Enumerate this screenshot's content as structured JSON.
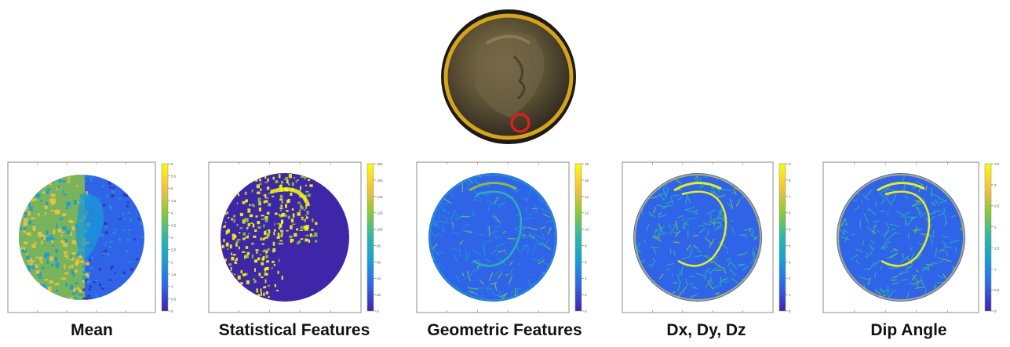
{
  "coin": {
    "title": ""
  },
  "panels": [
    {
      "label": "Mean",
      "colorbar_ticks": [
        "0",
        "0.5",
        "1",
        "1.5",
        "2",
        "2.5",
        "3",
        "3.5",
        "4",
        "4.5",
        "5",
        "5.5",
        "6"
      ],
      "pattern": "mean"
    },
    {
      "label": "Statistical Features",
      "colorbar_ticks": [
        "0",
        "20",
        "40",
        "60",
        "80",
        "100",
        "120",
        "140",
        "160",
        "180"
      ],
      "pattern": "stat"
    },
    {
      "label": "Geometric Features",
      "colorbar_ticks": [
        "0",
        "2",
        "4",
        "6",
        "8",
        "10",
        "12",
        "14",
        "16",
        "18"
      ],
      "pattern": "geom"
    },
    {
      "label": "Dx, Dy, Dz",
      "colorbar_ticks": [
        "0",
        "1",
        "2",
        "3",
        "4",
        "5",
        "6",
        "7",
        "8",
        "9"
      ],
      "pattern": "deriv"
    },
    {
      "label": "Dip Angle",
      "colorbar_ticks": [
        "0",
        "0.5",
        "1",
        "1.5",
        "2",
        "2.5",
        "3",
        "3.5"
      ],
      "pattern": "dip"
    }
  ],
  "colors": {
    "ring": "#d4a51c",
    "marker": "#e11d1d",
    "cmap": [
      "#3e26a8",
      "#2f64e8",
      "#1a9ad6",
      "#2cb8a5",
      "#8cc83a",
      "#f2c23c",
      "#f9fb0e"
    ]
  }
}
